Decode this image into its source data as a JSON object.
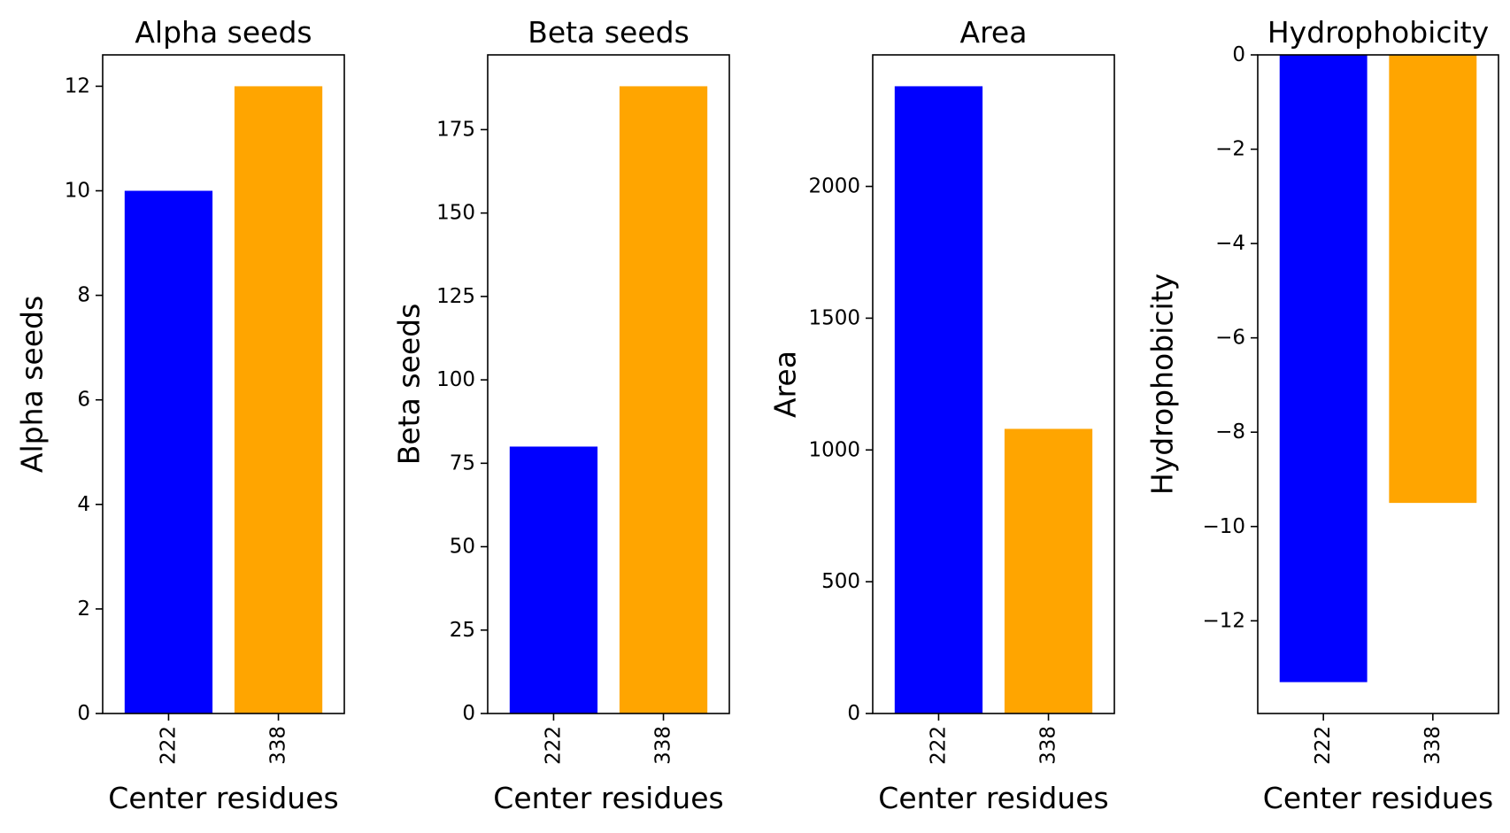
{
  "chart_data": [
    {
      "type": "bar",
      "title": "Alpha seeds",
      "xlabel": "Center residues",
      "ylabel": "Alpha seeds",
      "categories": [
        "222",
        "338"
      ],
      "values": [
        10,
        12
      ],
      "colors": [
        "#0000ff",
        "#ffa500"
      ],
      "ylim": [
        0,
        12.6
      ],
      "yticks": [
        0,
        2,
        4,
        6,
        8,
        10,
        12
      ],
      "ytick_labels": [
        "0",
        "2",
        "4",
        "6",
        "8",
        "10",
        "12"
      ],
      "grid": false,
      "legend": "none"
    },
    {
      "type": "bar",
      "title": "Beta seeds",
      "xlabel": "Center residues",
      "ylabel": "Beta seeds",
      "categories": [
        "222",
        "338"
      ],
      "values": [
        80,
        188
      ],
      "colors": [
        "#0000ff",
        "#ffa500"
      ],
      "ylim": [
        0,
        197.4
      ],
      "yticks": [
        0,
        25,
        50,
        75,
        100,
        125,
        150,
        175
      ],
      "ytick_labels": [
        "0",
        "25",
        "50",
        "75",
        "100",
        "125",
        "150",
        "175"
      ],
      "grid": false,
      "legend": "none"
    },
    {
      "type": "bar",
      "title": "Area",
      "xlabel": "Center residues",
      "ylabel": "Area",
      "categories": [
        "222",
        "338"
      ],
      "values": [
        2380,
        1080
      ],
      "colors": [
        "#0000ff",
        "#ffa500"
      ],
      "ylim": [
        0,
        2499
      ],
      "yticks": [
        0,
        500,
        1000,
        1500,
        2000
      ],
      "ytick_labels": [
        "0",
        "500",
        "1000",
        "1500",
        "2000"
      ],
      "grid": false,
      "legend": "none"
    },
    {
      "type": "bar",
      "title": "Hydrophobicity",
      "xlabel": "Center residues",
      "ylabel": "Hydrophobicity",
      "categories": [
        "222",
        "338"
      ],
      "values": [
        -13.3,
        -9.5
      ],
      "colors": [
        "#0000ff",
        "#ffa500"
      ],
      "ylim": [
        -13.965,
        0
      ],
      "yticks": [
        0,
        -2,
        -4,
        -6,
        -8,
        -10,
        -12
      ],
      "ytick_labels": [
        "0",
        "−2",
        "−4",
        "−6",
        "−8",
        "−10",
        "−12"
      ],
      "grid": false,
      "legend": "none"
    }
  ]
}
